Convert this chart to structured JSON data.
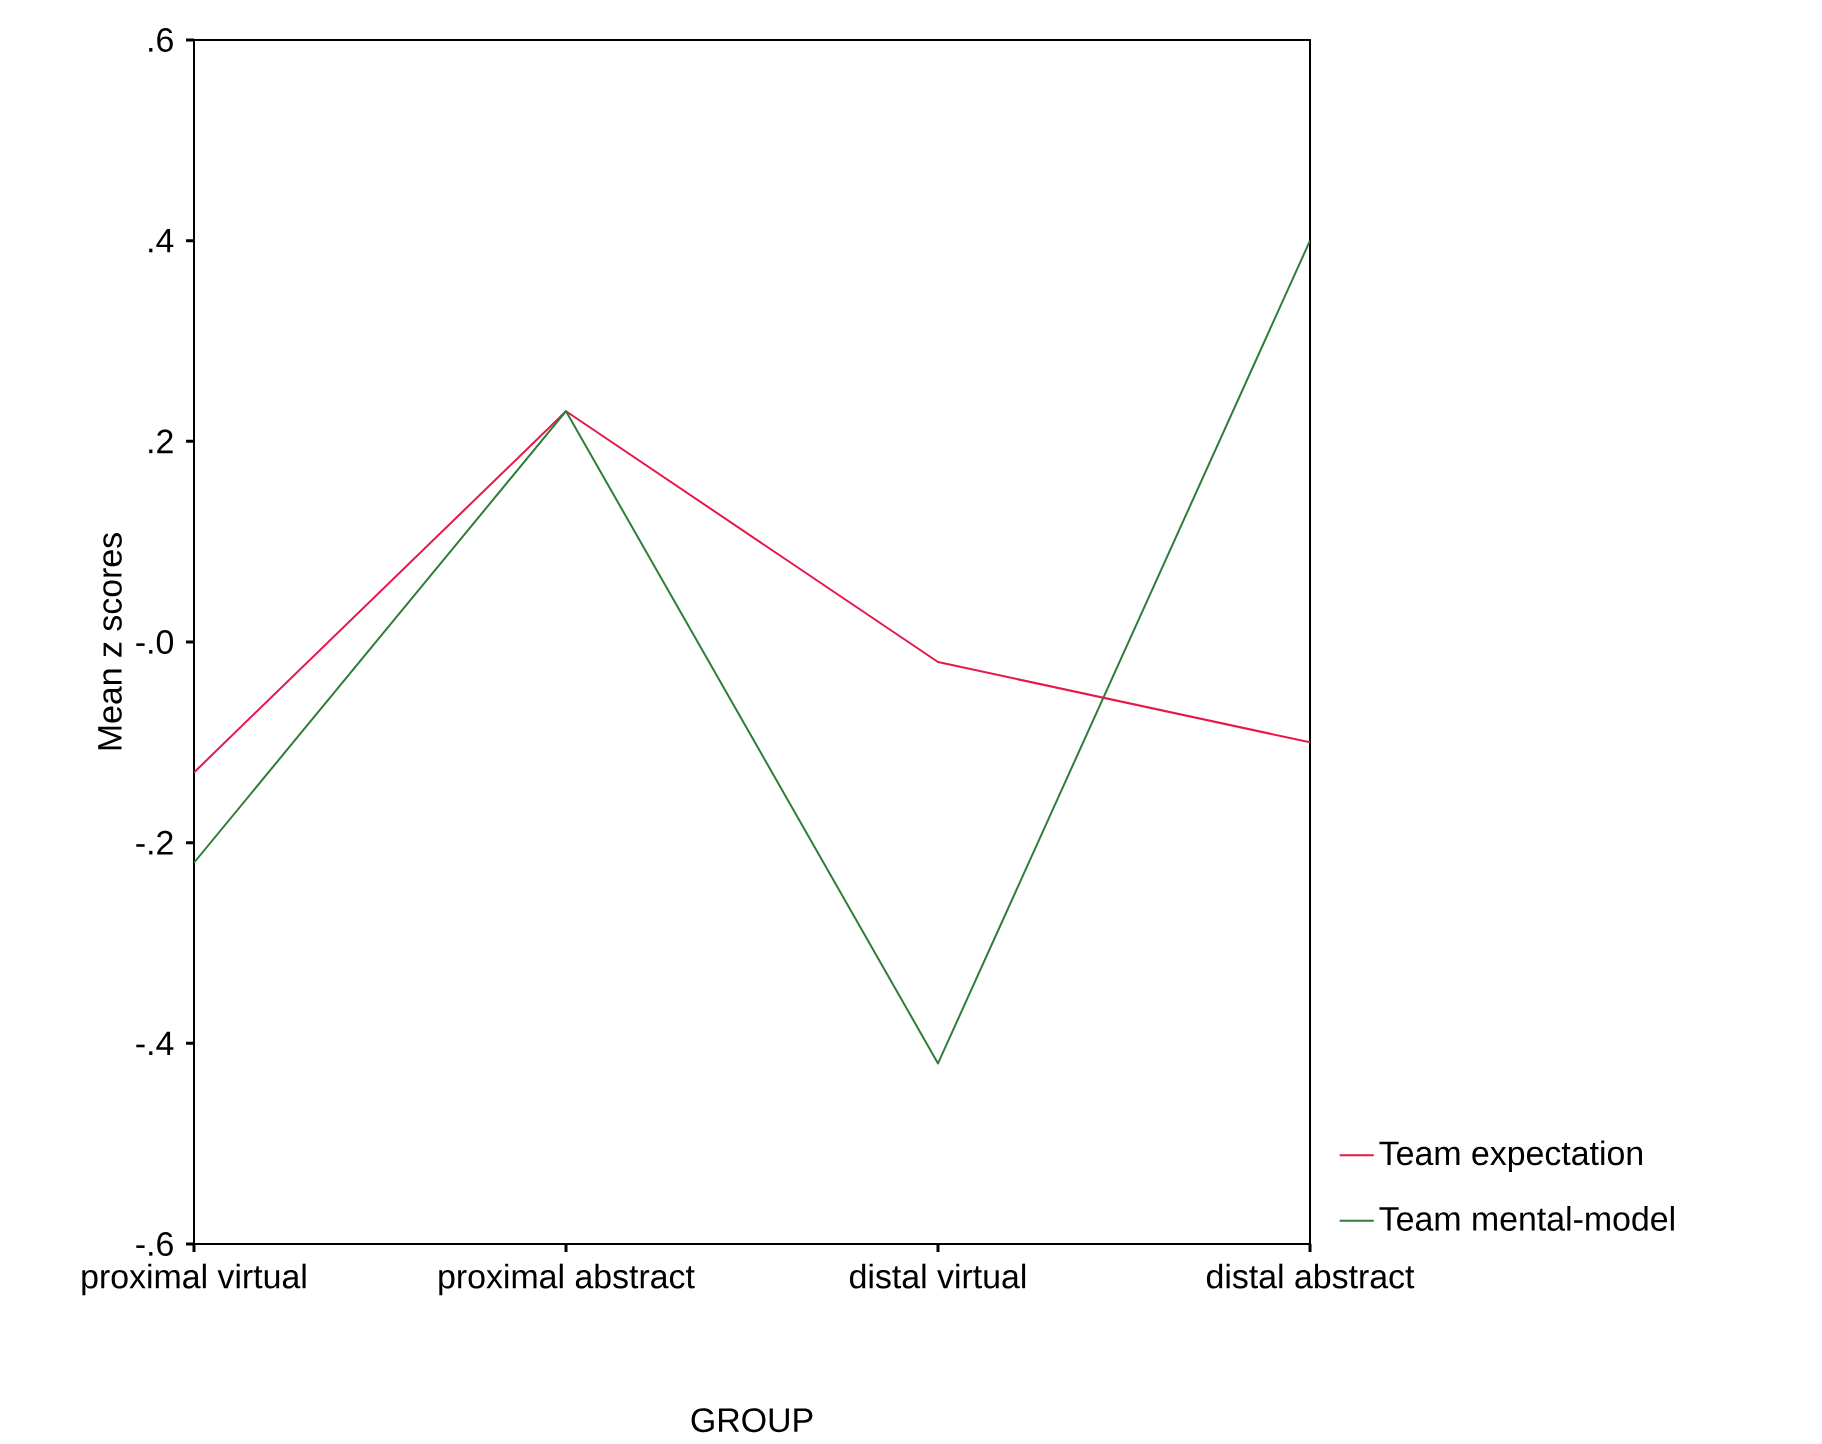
{
  "chart_data": {
    "type": "line",
    "xlabel": "GROUP",
    "ylabel": "Mean z scores",
    "categories": [
      "proximal virtual",
      "proximal abstract",
      "distal virtual",
      "distal abstract"
    ],
    "series": [
      {
        "name": "Team expectation",
        "color": "#e8174a",
        "values": [
          -0.13,
          0.23,
          -0.02,
          -0.1
        ]
      },
      {
        "name": "Team mental-model",
        "color": "#2e7d3a",
        "values": [
          -0.22,
          0.23,
          -0.42,
          0.4
        ]
      }
    ],
    "ylim": [
      -0.6,
      0.6
    ],
    "yticks": [
      {
        "value": -0.6,
        "label": "-.6"
      },
      {
        "value": -0.4,
        "label": "-.4"
      },
      {
        "value": -0.2,
        "label": "-.2"
      },
      {
        "value": 0,
        "label": "-.0"
      },
      {
        "value": 0.2,
        "label": ".2"
      },
      {
        "value": 0.4,
        "label": ".4"
      },
      {
        "value": 0.6,
        "label": ".6"
      }
    ],
    "legend": "right",
    "grid": false,
    "marker": "none",
    "line_style": "solid"
  }
}
